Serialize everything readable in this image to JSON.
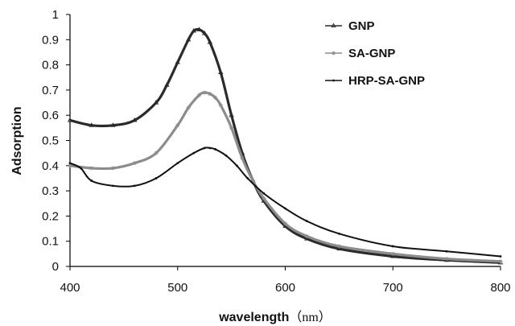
{
  "chart_data": {
    "type": "line",
    "xlabel": "wavelength",
    "xunit": "（nm）",
    "ylabel": "Adsorption",
    "xlim": [
      400,
      800
    ],
    "ylim": [
      0,
      1
    ],
    "x_ticks": [
      "400",
      "500",
      "600",
      "700",
      "800"
    ],
    "y_ticks": [
      "0",
      "0.1",
      "0.2",
      "0.3",
      "0.4",
      "0.5",
      "0.6",
      "0.7",
      "0.8",
      "0.9",
      "1"
    ],
    "grid": false,
    "legend_position": "top-right",
    "series": [
      {
        "name": "GNP",
        "color": "#2a2a2a",
        "marker": "triangle",
        "x": [
          400,
          420,
          440,
          460,
          480,
          490,
          500,
          510,
          515,
          520,
          525,
          530,
          540,
          550,
          560,
          570,
          580,
          600,
          620,
          650,
          700,
          750,
          800
        ],
        "y": [
          0.58,
          0.56,
          0.56,
          0.58,
          0.65,
          0.72,
          0.81,
          0.9,
          0.935,
          0.94,
          0.925,
          0.89,
          0.77,
          0.6,
          0.45,
          0.34,
          0.26,
          0.16,
          0.11,
          0.07,
          0.04,
          0.025,
          0.015
        ]
      },
      {
        "name": "SA-GNP",
        "color": "#8c8c8c",
        "marker": "asterisk",
        "x": [
          400,
          420,
          440,
          460,
          480,
          500,
          510,
          520,
          525,
          530,
          535,
          540,
          550,
          560,
          570,
          580,
          600,
          620,
          650,
          700,
          750,
          800
        ],
        "y": [
          0.4,
          0.39,
          0.39,
          0.41,
          0.45,
          0.56,
          0.63,
          0.68,
          0.69,
          0.685,
          0.67,
          0.64,
          0.55,
          0.43,
          0.34,
          0.27,
          0.17,
          0.12,
          0.08,
          0.05,
          0.03,
          0.02
        ]
      },
      {
        "name": "HRP-SA-GNP",
        "color": "#111111",
        "marker": "dot",
        "x": [
          400,
          410,
          420,
          440,
          460,
          480,
          500,
          515,
          525,
          530,
          535,
          545,
          555,
          565,
          580,
          600,
          620,
          650,
          700,
          750,
          800
        ],
        "y": [
          0.41,
          0.39,
          0.34,
          0.32,
          0.32,
          0.35,
          0.41,
          0.45,
          0.47,
          0.47,
          0.465,
          0.44,
          0.4,
          0.35,
          0.29,
          0.23,
          0.18,
          0.13,
          0.08,
          0.06,
          0.04
        ]
      }
    ]
  }
}
